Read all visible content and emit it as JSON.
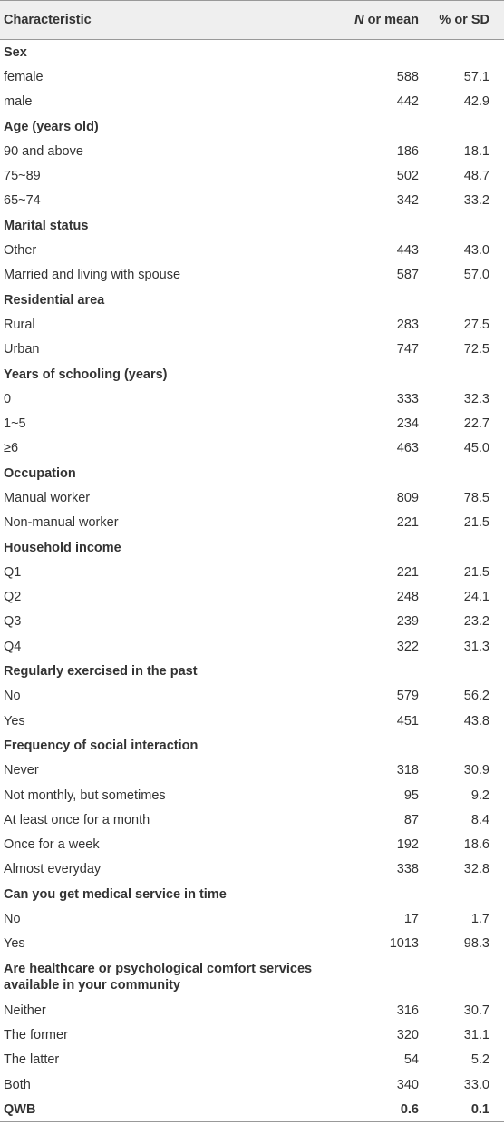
{
  "table": {
    "header": [
      "Characteristic",
      "N or mean",
      "% or SD"
    ],
    "sections": [
      {
        "title": "Sex",
        "rows": [
          [
            "female",
            "588",
            "57.1"
          ],
          [
            "male",
            "442",
            "42.9"
          ]
        ]
      },
      {
        "title": "Age (years old)",
        "rows": [
          [
            "90 and above",
            "186",
            "18.1"
          ],
          [
            "75~89",
            "502",
            "48.7"
          ],
          [
            "65~74",
            "342",
            "33.2"
          ]
        ]
      },
      {
        "title": "Marital status",
        "rows": [
          [
            "Other",
            "443",
            "43.0"
          ],
          [
            "Married and living with spouse",
            "587",
            "57.0"
          ]
        ]
      },
      {
        "title": "Residential area",
        "rows": [
          [
            "Rural",
            "283",
            "27.5"
          ],
          [
            "Urban",
            "747",
            "72.5"
          ]
        ]
      },
      {
        "title": "Years of schooling (years)",
        "rows": [
          [
            "0",
            "333",
            "32.3"
          ],
          [
            "1~5",
            "234",
            "22.7"
          ],
          [
            "≥6",
            "463",
            "45.0"
          ]
        ]
      },
      {
        "title": "Occupation",
        "rows": [
          [
            "Manual worker",
            "809",
            "78.5"
          ],
          [
            "Non-manual worker",
            "221",
            "21.5"
          ]
        ]
      },
      {
        "title": "Household income",
        "rows": [
          [
            "Q1",
            "221",
            "21.5"
          ],
          [
            "Q2",
            "248",
            "24.1"
          ],
          [
            "Q3",
            "239",
            "23.2"
          ],
          [
            "Q4",
            "322",
            "31.3"
          ]
        ]
      },
      {
        "title": "Regularly exercised in the past",
        "rows": [
          [
            "No",
            "579",
            "56.2"
          ],
          [
            "Yes",
            "451",
            "43.8"
          ]
        ]
      },
      {
        "title": "Frequency of social interaction",
        "rows": [
          [
            "Never",
            "318",
            "30.9"
          ],
          [
            "Not monthly, but sometimes",
            "95",
            "9.2"
          ],
          [
            "At least once for a month",
            "87",
            "8.4"
          ],
          [
            "Once for a week",
            "192",
            "18.6"
          ],
          [
            "Almost everyday",
            "338",
            "32.8"
          ]
        ]
      },
      {
        "title": "Can you get medical service in time",
        "rows": [
          [
            "No",
            "17",
            "1.7"
          ],
          [
            "Yes",
            "1013",
            "98.3"
          ]
        ]
      },
      {
        "title": "Are healthcare or psychological comfort services available in your community",
        "rows": [
          [
            "Neither",
            "316",
            "30.7"
          ],
          [
            "The former",
            "320",
            "31.1"
          ],
          [
            "The latter",
            "54",
            "5.2"
          ],
          [
            "Both",
            "340",
            "33.0"
          ]
        ]
      }
    ],
    "summary": {
      "title": "QWB",
      "values": [
        "0.6",
        "0.1"
      ]
    }
  }
}
